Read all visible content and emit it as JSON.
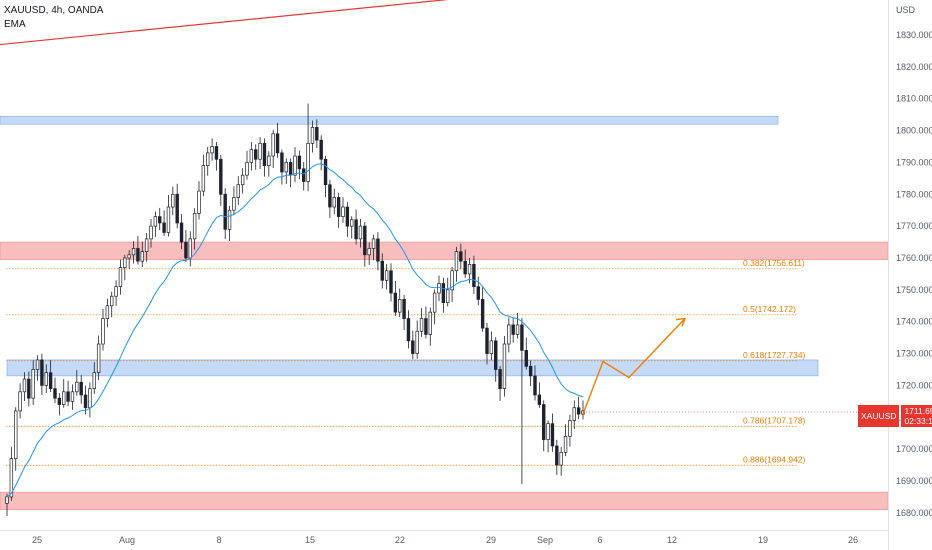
{
  "legend": {
    "symbol_line": "XAUUSD, 4h, OANDA",
    "indicator": "EMA"
  },
  "currency": "USD",
  "price_tag": {
    "symbol": "XAUUSD",
    "price": "1711.655",
    "countdown": "02:33:14"
  },
  "colors": {
    "up": "#26a69a",
    "down": "#131722",
    "candle": "#1e222d",
    "ema": "#2196f3",
    "trendline": "#e53935",
    "blue_zone": "#bbd4f5",
    "red_zone": "#f7b3b3",
    "fib": "#f57c00",
    "projection": "#f57c00",
    "price_tag": "#e8362f"
  },
  "chart_data": {
    "type": "candlestick",
    "y_ticks": [
      1680,
      1690,
      1700,
      1710,
      1720,
      1730,
      1740,
      1750,
      1760,
      1770,
      1780,
      1790,
      1800,
      1810,
      1820,
      1830
    ],
    "y_tick_labels": [
      "1680.000",
      "1690.000",
      "1700.000",
      "1710.000",
      "1720.000",
      "1730.000",
      "1740.000",
      "1750.000",
      "1760.000",
      "1770.000",
      "1780.000",
      "1790.000",
      "1800.000",
      "1810.000",
      "1820.000",
      "1830.000"
    ],
    "ylim": [
      1675,
      1842
    ],
    "x_tick_labels": [
      "25",
      "Aug",
      "8",
      "15",
      "22",
      "29",
      "Sep",
      "6",
      "12",
      "19",
      "26"
    ],
    "zones": [
      {
        "kind": "resistance",
        "color": "blue",
        "low": 1802,
        "high": 1804.5
      },
      {
        "kind": "resistance",
        "color": "red",
        "low": 1759.5,
        "high": 1765
      },
      {
        "kind": "support",
        "color": "blue",
        "low": 1723,
        "high": 1728
      },
      {
        "kind": "support",
        "color": "red",
        "low": 1681,
        "high": 1686.5
      }
    ],
    "fib_levels": [
      {
        "label": "0.382(1756.611)",
        "value": 1756.611
      },
      {
        "label": "0.5(1742.172)",
        "value": 1742.172
      },
      {
        "label": "0.618(1727.734)",
        "value": 1727.734
      },
      {
        "label": "0.786(1707.178)",
        "value": 1707.178
      },
      {
        "label": "0.886(1694.942)",
        "value": 1694.942
      }
    ],
    "trendline": {
      "from": 1827,
      "to": 1842
    },
    "projection": [
      1711,
      1727.5,
      1722.5,
      1741
    ],
    "current_price": 1711.655,
    "closes": [
      1685,
      1697,
      1712,
      1718,
      1722,
      1716,
      1725,
      1728,
      1720,
      1724,
      1719,
      1716,
      1714,
      1718,
      1715,
      1718,
      1721,
      1717,
      1713,
      1719,
      1724,
      1733,
      1741,
      1745,
      1748,
      1751,
      1757,
      1760,
      1761,
      1763,
      1759,
      1762,
      1766,
      1770,
      1773,
      1771,
      1768,
      1776,
      1780,
      1771,
      1765,
      1760,
      1766,
      1774,
      1781,
      1789,
      1793,
      1795,
      1791,
      1780,
      1769,
      1775,
      1779,
      1783,
      1786,
      1790,
      1794,
      1791,
      1796,
      1789,
      1792,
      1799,
      1793,
      1787,
      1790,
      1786,
      1792,
      1788,
      1784,
      1796,
      1801,
      1797,
      1791,
      1783,
      1776,
      1779,
      1773,
      1776,
      1770,
      1772,
      1766,
      1770,
      1761,
      1763,
      1766,
      1759,
      1753,
      1756,
      1749,
      1743,
      1747,
      1741,
      1734,
      1730,
      1737,
      1741,
      1736,
      1743,
      1749,
      1752,
      1746,
      1750,
      1756,
      1762,
      1759,
      1755,
      1758,
      1751,
      1747,
      1738,
      1730,
      1734,
      1725,
      1719,
      1733,
      1739,
      1736,
      1739,
      1731,
      1726,
      1723,
      1717,
      1714,
      1703,
      1708,
      1701,
      1695,
      1699,
      1704,
      1709,
      1713,
      1711,
      1712
    ]
  }
}
